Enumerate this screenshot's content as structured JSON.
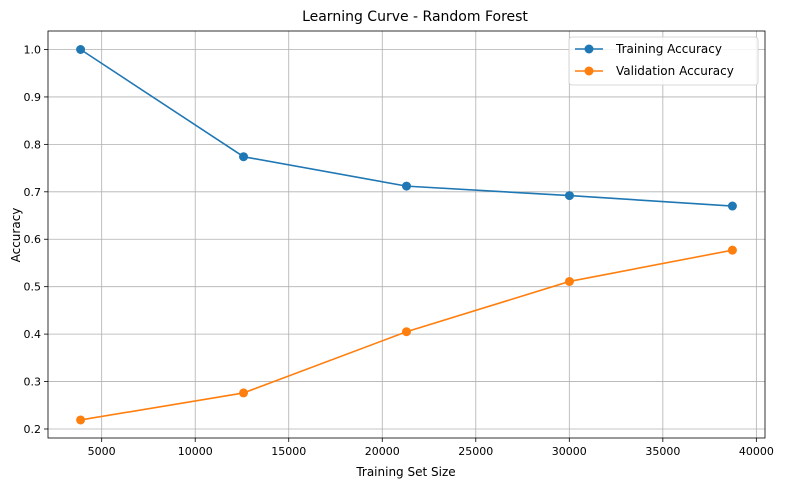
{
  "chart_data": {
    "type": "line",
    "title": "Learning Curve - Random Forest",
    "xlabel": "Training Set Size",
    "ylabel": "Accuracy",
    "x": [
      3872,
      12584,
      21296,
      30008,
      38720
    ],
    "xlim": [
      2130,
      40462
    ],
    "ylim": [
      0.181,
      1.039
    ],
    "xticks": [
      5000,
      10000,
      15000,
      20000,
      25000,
      30000,
      35000,
      40000
    ],
    "yticks": [
      0.2,
      0.3,
      0.4,
      0.5,
      0.6,
      0.7,
      0.8,
      0.9,
      1.0
    ],
    "xtick_labels": [
      "5000",
      "10000",
      "15000",
      "20000",
      "25000",
      "30000",
      "35000",
      "40000"
    ],
    "ytick_labels": [
      "0.2",
      "0.3",
      "0.4",
      "0.5",
      "0.6",
      "0.7",
      "0.8",
      "0.9",
      "1.0"
    ],
    "grid": true,
    "legend_position": "top-right",
    "series": [
      {
        "name": "Training Accuracy",
        "color": "#1f77b4",
        "marker": "circle",
        "values": [
          1.0,
          0.774,
          0.712,
          0.692,
          0.67
        ]
      },
      {
        "name": "Validation Accuracy",
        "color": "#ff7f0e",
        "marker": "circle",
        "values": [
          0.219,
          0.276,
          0.405,
          0.511,
          0.577
        ]
      }
    ]
  }
}
